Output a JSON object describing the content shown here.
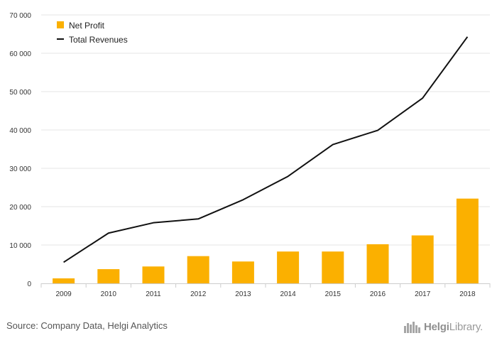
{
  "chart_data": {
    "type": "bar+line",
    "categories": [
      "2009",
      "2010",
      "2011",
      "2012",
      "2013",
      "2014",
      "2015",
      "2016",
      "2017",
      "2018"
    ],
    "series": [
      {
        "name": "Net Profit",
        "kind": "bar",
        "color": "#FBB000",
        "values": [
          1300,
          3700,
          4400,
          7100,
          5700,
          8300,
          8300,
          10200,
          12500,
          22100
        ]
      },
      {
        "name": "Total Revenues",
        "kind": "line",
        "color": "#111111",
        "values": [
          5500,
          13100,
          15800,
          16800,
          21800,
          27900,
          36200,
          39900,
          48300,
          64300
        ]
      }
    ],
    "y_ticks": [
      "0",
      "10 000",
      "20 000",
      "30 000",
      "40 000",
      "50 000",
      "60 000",
      "70 000"
    ],
    "ylim": [
      0,
      70000
    ],
    "grid": true,
    "legend_position": "top-left"
  },
  "footer": {
    "source": "Source: Company Data, Helgi Analytics",
    "logo_bold": "Helgi",
    "logo_regular": "Library."
  },
  "colors": {
    "bar": "#FBB000",
    "line": "#111111",
    "grid": "#e6e6e6"
  },
  "icons": {
    "logo": "building-icon"
  }
}
